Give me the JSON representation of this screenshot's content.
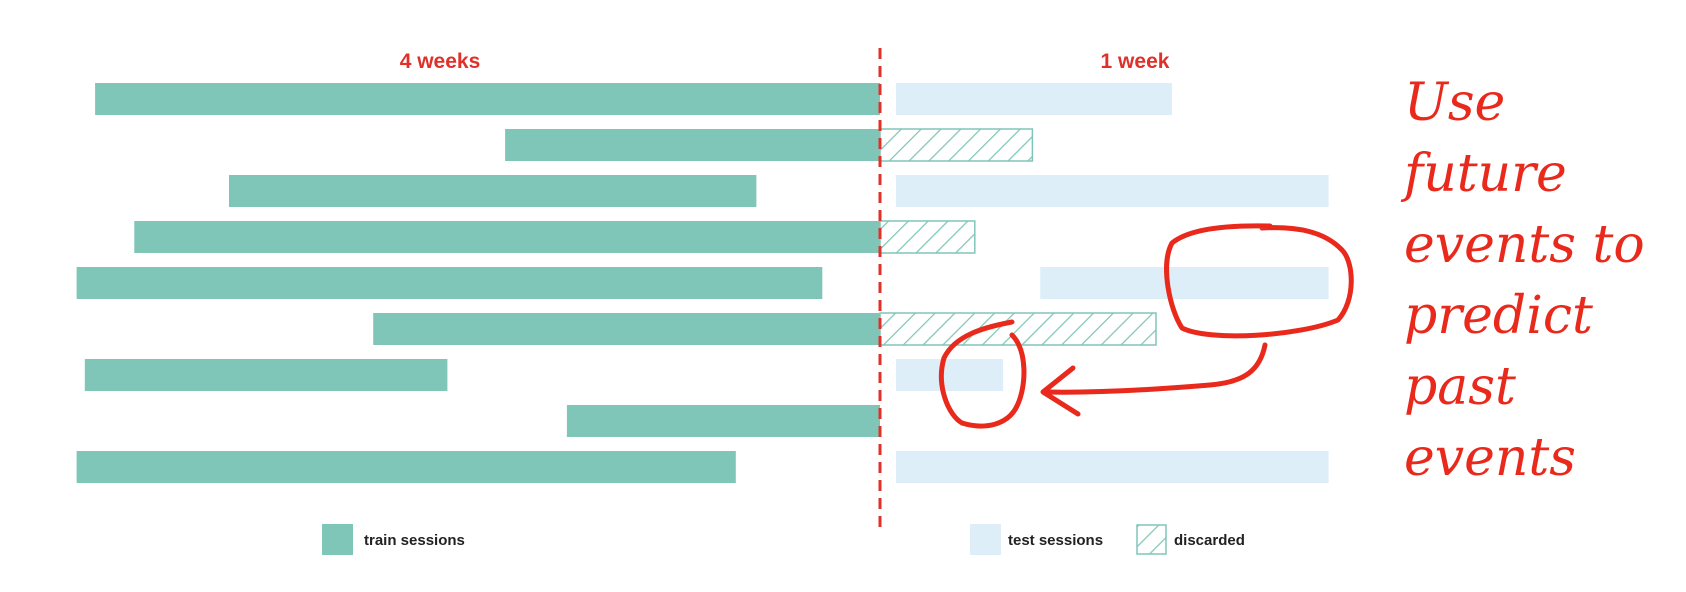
{
  "colors": {
    "train": "#80c6b8",
    "test": "#deeef8",
    "discarded_stroke": "#80c6b8",
    "accent": "#e0302a",
    "annotation": "#e8291c"
  },
  "periods": {
    "train_label": "4 weeks",
    "test_label": "1 week"
  },
  "rows": [
    {
      "train": [
        0.95,
        20.0
      ],
      "test": [
        0.0,
        6.7
      ]
    },
    {
      "train": [
        10.9,
        20.0
      ],
      "discarded": [
        0.0,
        3.7
      ]
    },
    {
      "train": [
        4.2,
        17.0
      ],
      "test": [
        0.0,
        10.5
      ]
    },
    {
      "train": [
        1.9,
        20.0
      ],
      "discarded": [
        0.0,
        2.3
      ]
    },
    {
      "train": [
        0.5,
        18.6
      ],
      "test": [
        3.5,
        10.5
      ]
    },
    {
      "train": [
        7.7,
        20.0
      ],
      "discarded": [
        0.0,
        6.7
      ]
    },
    {
      "train": [
        0.7,
        9.5
      ],
      "test": [
        0.0,
        2.6
      ]
    },
    {
      "train": [
        12.4,
        20.0
      ]
    },
    {
      "train": [
        0.5,
        16.5
      ],
      "test": [
        0.0,
        10.5
      ]
    }
  ],
  "legend": {
    "train": "train sessions",
    "test": "test sessions",
    "discarded": "discarded"
  },
  "annotation": {
    "lines": [
      "Use",
      "future",
      "events to",
      "predict",
      "past",
      "events"
    ]
  }
}
